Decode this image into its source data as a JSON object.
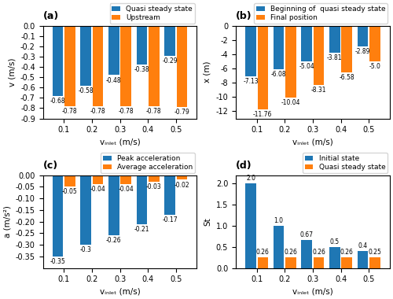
{
  "chart_data": [
    {
      "type": "bar",
      "title": "(a)",
      "x_label": "vᵢₙₗₑₜ (m/s)",
      "y_label": "v (m/s)",
      "x": [
        0.1,
        0.2,
        0.3,
        0.4,
        0.5
      ],
      "series": [
        {
          "name": "Quasi steady state",
          "values": [
            -0.68,
            -0.58,
            -0.48,
            -0.38,
            -0.29
          ]
        },
        {
          "name": "Upstream",
          "values": [
            -0.78,
            -0.78,
            -0.78,
            -0.78,
            -0.79
          ]
        }
      ],
      "xlim": [
        0.025,
        0.575
      ],
      "xticks": [
        0.1,
        0.2,
        0.3,
        0.4,
        0.5
      ],
      "ylim": [
        -0.9,
        0.0
      ],
      "yticks": [
        0.0,
        -0.1,
        -0.2,
        -0.3,
        -0.4,
        -0.5,
        -0.6,
        -0.7,
        -0.8,
        -0.9
      ],
      "data_labels": true
    },
    {
      "type": "bar",
      "title": "(b)",
      "x_label": "vᵢₙₗₑₜ (m/s)",
      "y_label": "x (m)",
      "x": [
        0.1,
        0.2,
        0.3,
        0.4,
        0.5
      ],
      "series": [
        {
          "name": "Beginning of  quasi steady state",
          "values": [
            -7.13,
            -6.08,
            -5.04,
            -3.81,
            -2.89
          ]
        },
        {
          "name": "Final position",
          "values": [
            -11.76,
            -10.04,
            -8.31,
            -6.58,
            -5.0
          ]
        }
      ],
      "xlim": [
        0.025,
        0.575
      ],
      "xticks": [
        0.1,
        0.2,
        0.3,
        0.4,
        0.5
      ],
      "ylim": [
        -13,
        0
      ],
      "yticks": [
        0,
        -2,
        -4,
        -6,
        -8,
        -10,
        -12
      ],
      "data_labels": true
    },
    {
      "type": "bar",
      "title": "(c)",
      "x_label": "vᵢₙₗₑₜ (m/s)",
      "y_label": "a (m/s²)",
      "x": [
        0.1,
        0.2,
        0.3,
        0.4,
        0.5
      ],
      "series": [
        {
          "name": "Peak acceleration",
          "values": [
            -0.35,
            -0.3,
            -0.26,
            -0.21,
            -0.17
          ]
        },
        {
          "name": "Average acceleration",
          "values": [
            -0.05,
            -0.04,
            -0.04,
            -0.03,
            -0.02
          ]
        }
      ],
      "xlim": [
        0.025,
        0.575
      ],
      "xticks": [
        0.1,
        0.2,
        0.3,
        0.4,
        0.5
      ],
      "ylim": [
        -0.4,
        0.0
      ],
      "yticks": [
        {
          "value": 0.0,
          "label": "0.00"
        },
        -0.05,
        {
          "value": -0.1,
          "label": "-0.10"
        },
        -0.15,
        {
          "value": -0.2,
          "label": "-0.20"
        },
        -0.25,
        {
          "value": -0.3,
          "label": "-0.30"
        },
        -0.35
      ],
      "data_labels": true
    },
    {
      "type": "bar",
      "title": "(d)",
      "x_label": "vᵢₙₗₑₜ (m/s)",
      "y_label": "St",
      "x": [
        0.1,
        0.2,
        0.3,
        0.4,
        0.5
      ],
      "series": [
        {
          "name": "Initial state",
          "values": [
            2.0,
            1.0,
            0.67,
            0.5,
            0.4
          ]
        },
        {
          "name": "Quasi steady state",
          "values": [
            0.26,
            0.26,
            0.26,
            0.26,
            0.25
          ]
        }
      ],
      "xlim": [
        0.025,
        0.575
      ],
      "xticks": [
        0.1,
        0.2,
        0.3,
        0.4,
        0.5
      ],
      "ylim": [
        0,
        2.2
      ],
      "yticks": [
        0.0,
        0.5,
        1.0,
        1.5,
        2.0
      ],
      "data_labels": true
    }
  ]
}
